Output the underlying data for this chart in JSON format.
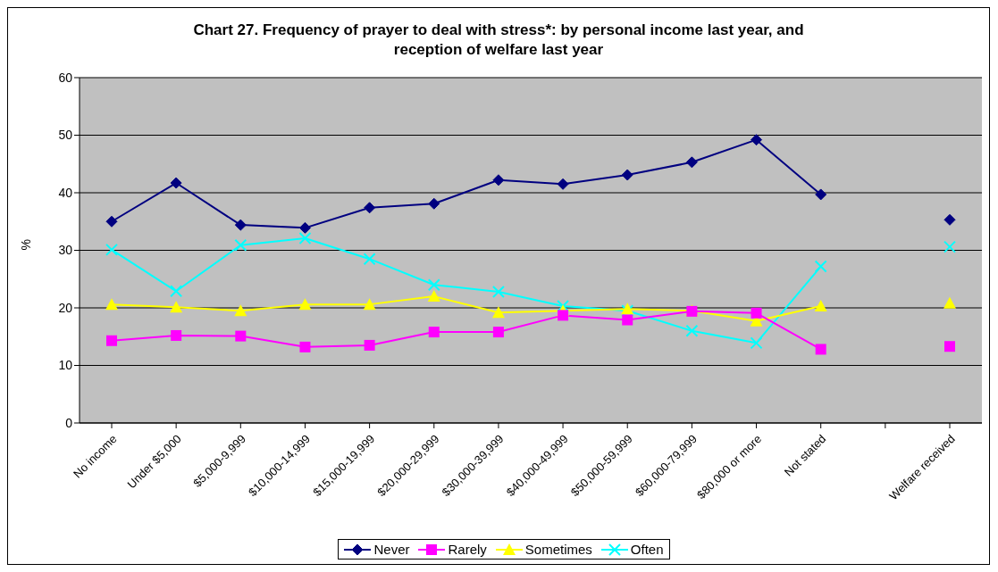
{
  "chart_data": {
    "type": "line",
    "title": "Chart 27. Frequency of prayer to deal with stress*: by personal income last year, and reception of welfare last year",
    "ylabel": "%",
    "categories": [
      "No income",
      "Under $5,000",
      "$5,000-9,999",
      "$10,000-14,999",
      "$15,000-19,999",
      "$20,000-29,999",
      "$30,000-39,999",
      "$40,000-49,999",
      "$50,000-59,999",
      "$60,000-79,999",
      "$80,000 or more",
      "Not stated",
      null,
      "Welfare received"
    ],
    "series": [
      {
        "name": "Never",
        "color": "#000080",
        "marker": "diamond",
        "values": [
          35,
          41.7,
          34.4,
          33.9,
          37.4,
          38.1,
          42.2,
          41.5,
          43.1,
          45.3,
          49.2,
          39.7,
          null,
          35.3
        ]
      },
      {
        "name": "Rarely",
        "color": "#ff00ff",
        "marker": "square",
        "values": [
          14.3,
          15.2,
          15.1,
          13.2,
          13.5,
          15.8,
          15.8,
          18.7,
          17.9,
          19.4,
          19.1,
          12.8,
          null,
          13.3
        ]
      },
      {
        "name": "Sometimes",
        "color": "#ffff00",
        "marker": "triangle",
        "values": [
          20.6,
          20.1,
          19.5,
          20.6,
          20.6,
          22,
          19.2,
          19.5,
          19.8,
          19.5,
          17.7,
          20.3,
          null,
          20.8
        ]
      },
      {
        "name": "Often",
        "color": "#00ffff",
        "marker": "cross",
        "values": [
          30.1,
          22.9,
          30.9,
          32.1,
          28.5,
          24,
          22.8,
          20.3,
          19.5,
          16,
          13.9,
          27.2,
          null,
          30.6
        ]
      }
    ],
    "ylim": [
      0,
      60
    ],
    "yticks": [
      0,
      10,
      20,
      30,
      40,
      50,
      60
    ],
    "grid": "y",
    "legend": "bottom",
    "line_style": "solid"
  }
}
